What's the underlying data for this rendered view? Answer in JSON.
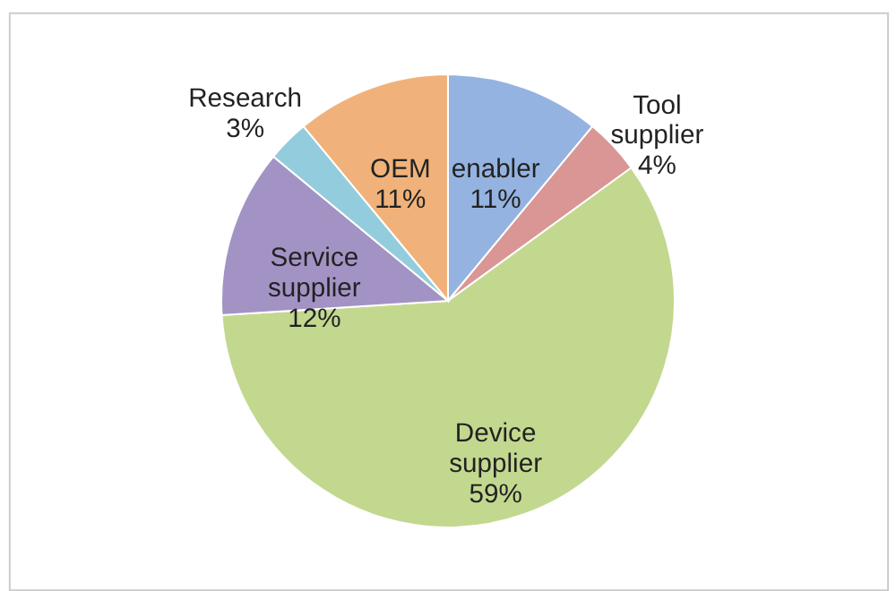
{
  "chart_data": {
    "type": "pie",
    "categories": [
      "enabler",
      "Tool supplier",
      "Device supplier",
      "Service supplier",
      "Research",
      "OEM"
    ],
    "values": [
      11,
      4,
      59,
      12,
      3,
      11
    ],
    "value_labels": [
      "11%",
      "4%",
      "59%",
      "12%",
      "3%",
      "11%"
    ],
    "colors": [
      "#95b3e0",
      "#d99694",
      "#c3d88f",
      "#a393c4",
      "#93cddd",
      "#f0b27a"
    ]
  }
}
